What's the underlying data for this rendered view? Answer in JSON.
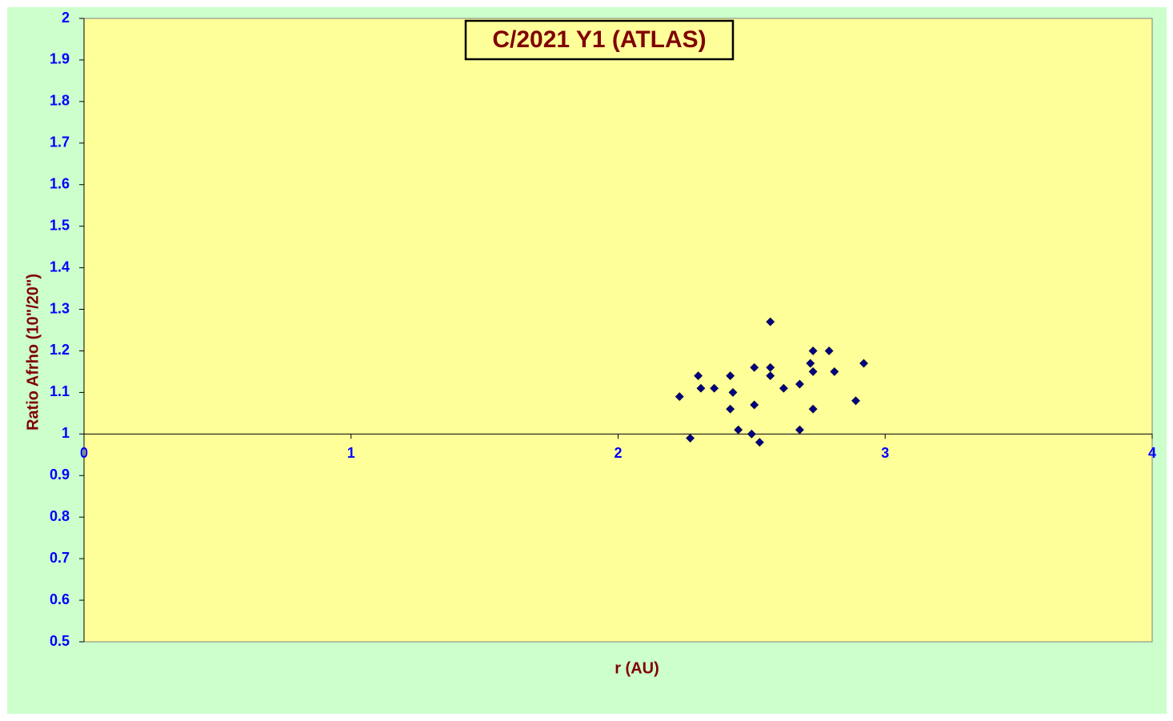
{
  "chart_data": {
    "type": "scatter",
    "title": "C/2021 Y1 (ATLAS)",
    "x_label": "r (AU)",
    "y_label": "Ratio Afrho (10\"/20\")",
    "xlim": [
      0,
      4
    ],
    "xticks": [
      0,
      1,
      2,
      3,
      4
    ],
    "ylim": [
      0.5,
      2
    ],
    "yticks": [
      0.5,
      0.6,
      0.7,
      0.8,
      0.9,
      1,
      1.1,
      1.2,
      1.3,
      1.4,
      1.5,
      1.6,
      1.7,
      1.8,
      1.9,
      2
    ],
    "x_axis_crossing": 1,
    "series": [
      {
        "color": "#000080",
        "x": [
          2.23,
          2.27,
          2.3,
          2.31,
          2.36,
          2.42,
          2.42,
          2.43,
          2.45,
          2.5,
          2.51,
          2.51,
          2.53,
          2.57,
          2.57,
          2.57,
          2.62,
          2.68,
          2.68,
          2.72,
          2.73,
          2.73,
          2.73,
          2.79,
          2.81,
          2.89,
          2.92
        ],
        "values": [
          1.09,
          0.99,
          1.14,
          1.11,
          1.11,
          1.14,
          1.06,
          1.1,
          1.01,
          1.0,
          1.16,
          1.07,
          0.98,
          1.27,
          1.16,
          1.14,
          1.11,
          1.12,
          1.01,
          1.17,
          1.2,
          1.15,
          1.06,
          1.2,
          1.15,
          1.08,
          1.17
        ]
      }
    ]
  }
}
